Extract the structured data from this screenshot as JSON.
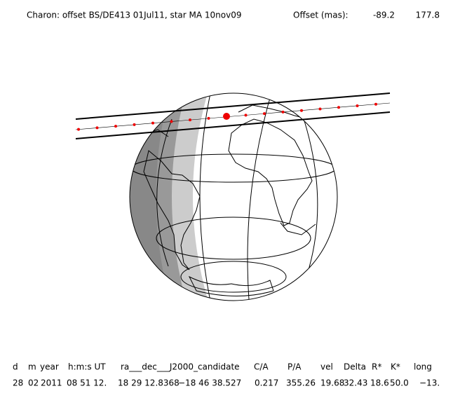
{
  "title": "Charon: offset BS/DE413 01Jul11, star MA 10nov09",
  "offset_label": "Offset (mas):",
  "offsets": [
    -89.2,
    177.8
  ],
  "table": {
    "headers": [
      "d",
      "m",
      "year",
      "h:m:s UT",
      "ra___dec___J2000_candidate",
      "C/A",
      "P/A",
      "vel",
      "Delta",
      "R*",
      "K*",
      "long"
    ],
    "values": [
      "28",
      "02",
      "2011",
      "08 51 12.",
      "18 29 12.8368",
      "−18 46  38.527",
      "0.217",
      "355.26",
      "19.68",
      "32.43",
      "18.6",
      "50.0",
      "−13."
    ]
  }
}
